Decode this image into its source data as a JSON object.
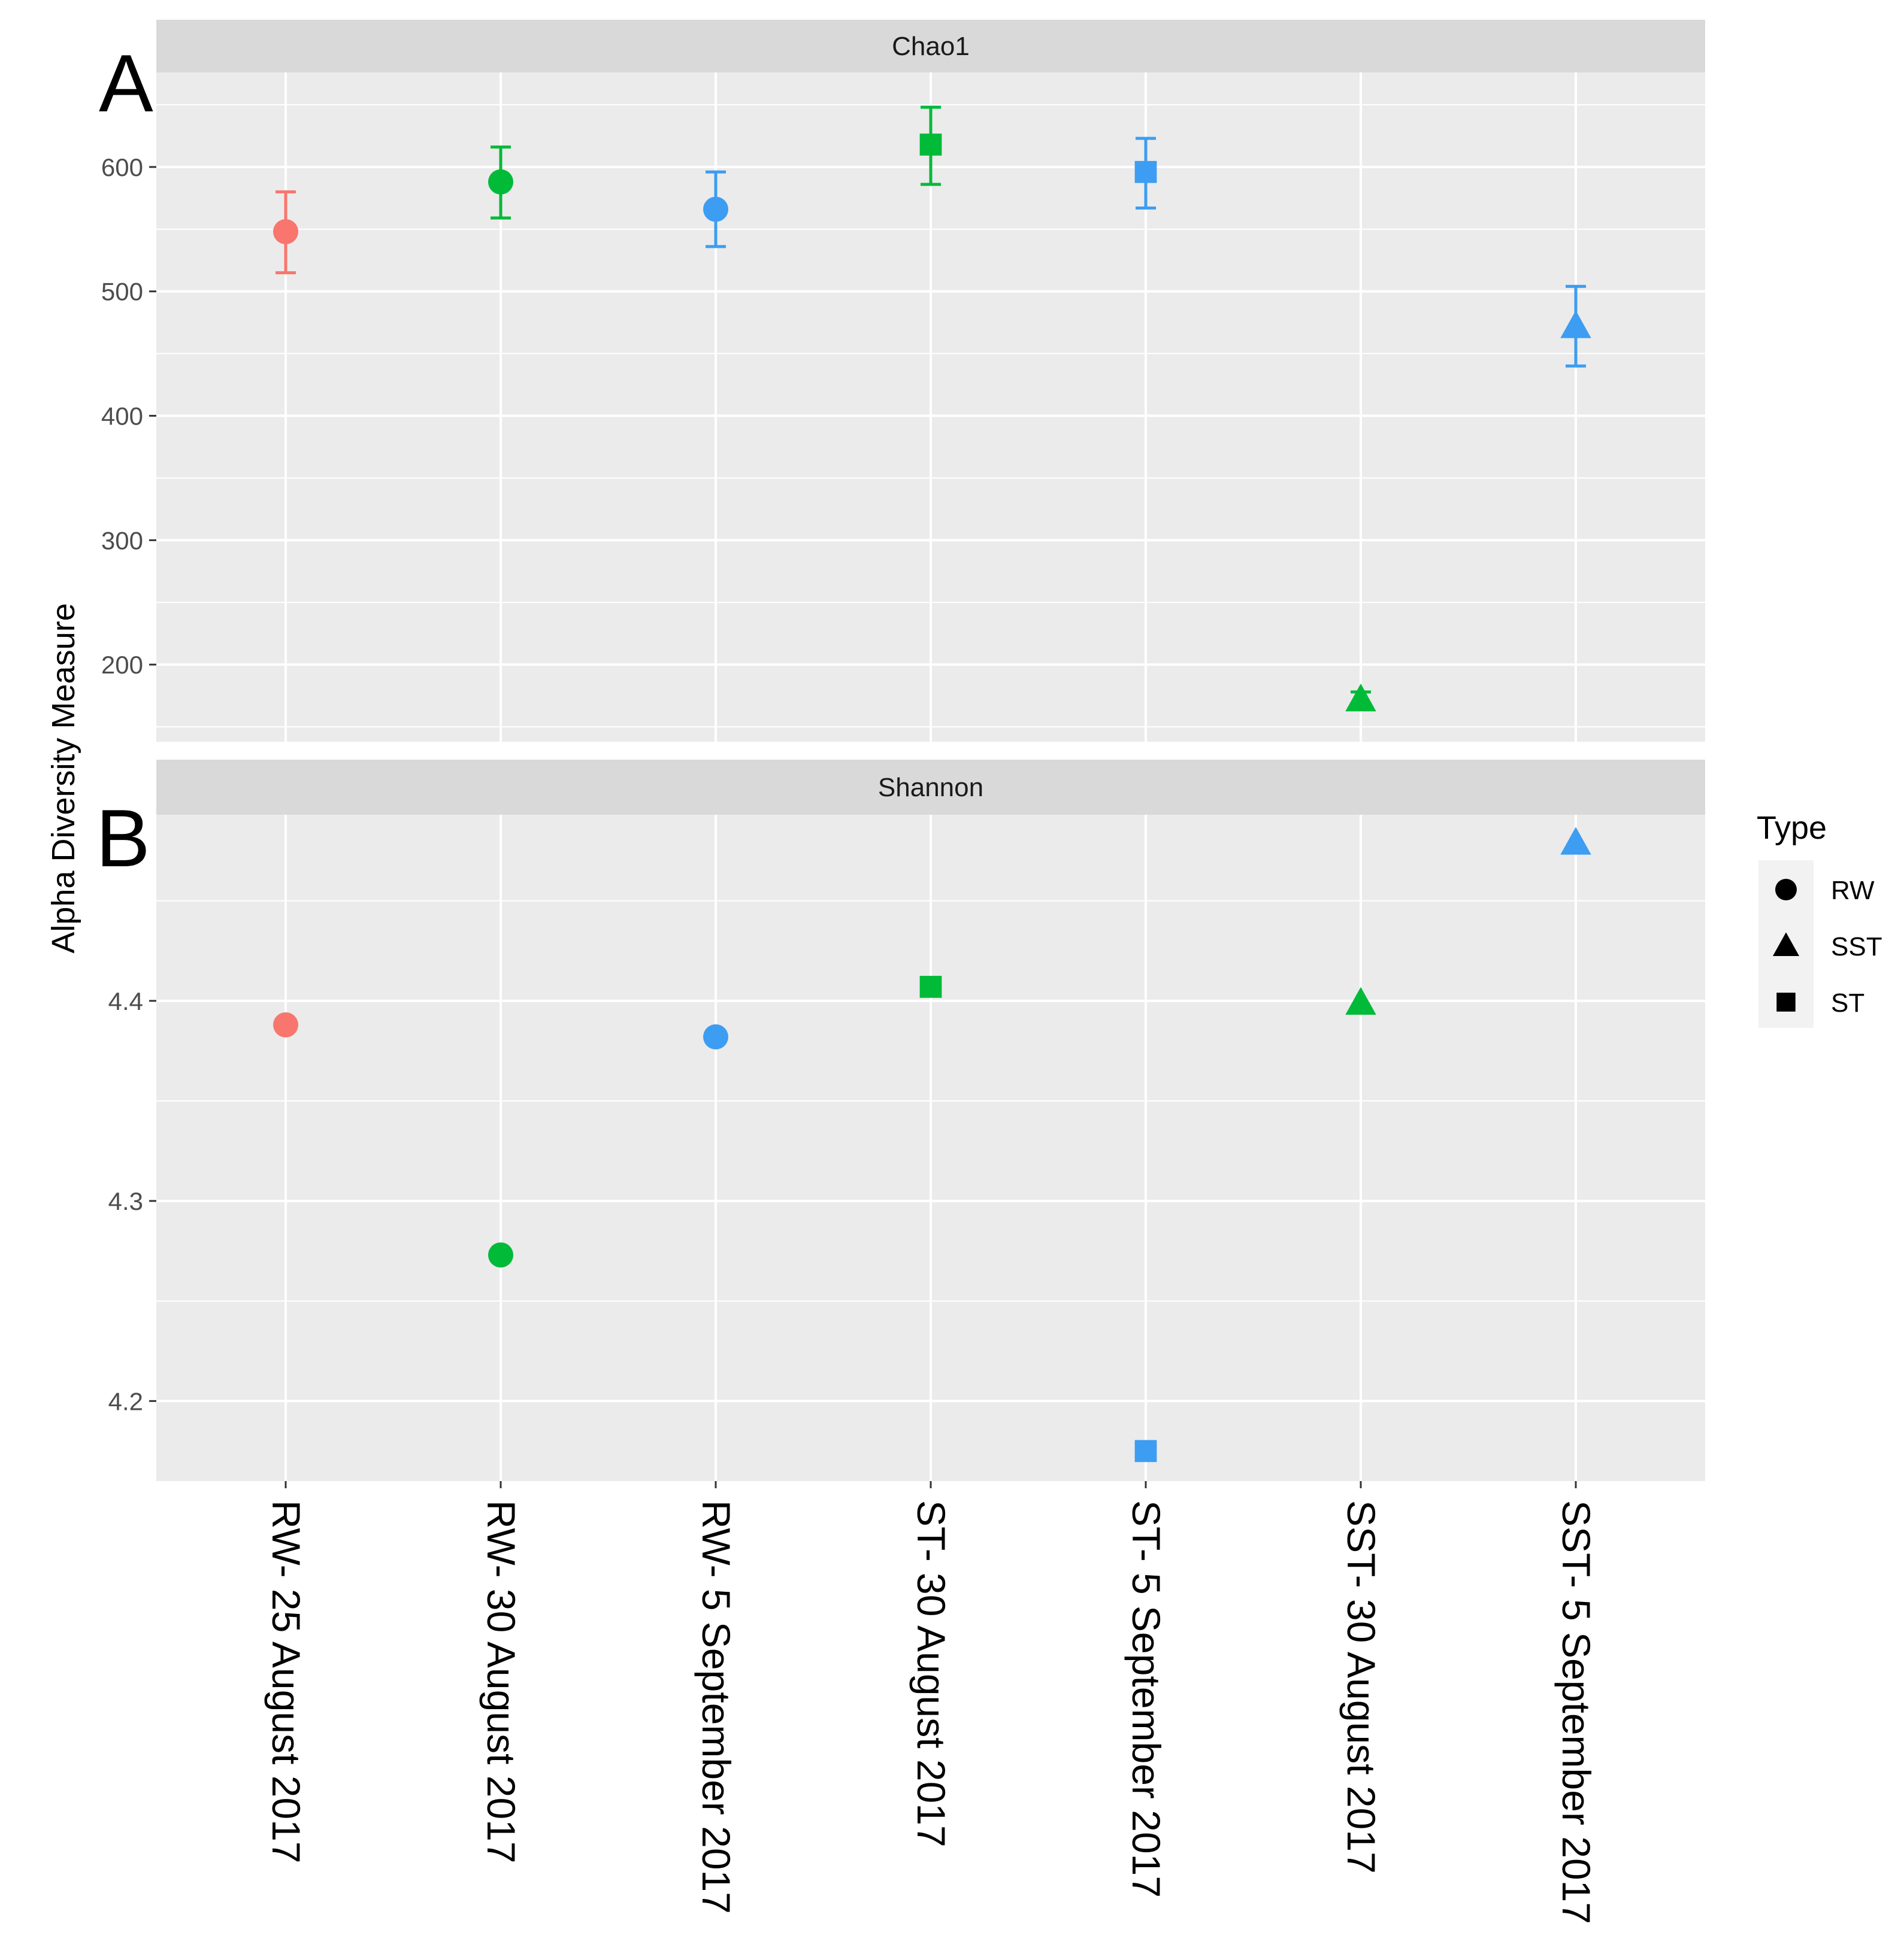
{
  "chart_data": {
    "type": "scatter",
    "ylabel": "Alpha Diversity Measure",
    "categories": [
      "RW- 25 August 2017",
      "RW- 30 August 2017",
      "RW- 5 September 2017",
      "ST- 30 August 2017",
      "ST- 5 September 2017",
      "SST- 30 August 2017",
      "SST- 5 September 2017"
    ],
    "point_colors": [
      "#F8766D",
      "#00BA38",
      "#3C9DF2",
      "#00BA38",
      "#3C9DF2",
      "#00BA38",
      "#3C9DF2"
    ],
    "point_types": [
      "RW",
      "RW",
      "RW",
      "ST",
      "ST",
      "SST",
      "SST"
    ],
    "panels": [
      {
        "letter": "A",
        "strip": "Chao1",
        "ylim": [
          138,
          676
        ],
        "yticks": [
          200,
          300,
          400,
          500,
          600
        ],
        "ytick_labels": [
          "200",
          "300",
          "400",
          "500",
          "600"
        ],
        "values": [
          548,
          588,
          566,
          618,
          596,
          172,
          472
        ],
        "error_low": [
          515,
          559,
          536,
          586,
          567,
          165,
          440
        ],
        "error_high": [
          580,
          616,
          596,
          648,
          623,
          178,
          504
        ]
      },
      {
        "letter": "B",
        "strip": "Shannon",
        "ylim": [
          4.16,
          4.493
        ],
        "yticks": [
          4.2,
          4.3,
          4.4
        ],
        "ytick_labels": [
          "4.2",
          "4.3",
          "4.4"
        ],
        "values": [
          4.388,
          4.273,
          4.382,
          4.407,
          4.175,
          4.399,
          4.479
        ]
      }
    ],
    "legend": {
      "title": "Type",
      "position": "right",
      "entries": [
        {
          "label": "RW",
          "shape": "circle"
        },
        {
          "label": "SST",
          "shape": "triangle"
        },
        {
          "label": "ST",
          "shape": "square"
        }
      ]
    }
  }
}
